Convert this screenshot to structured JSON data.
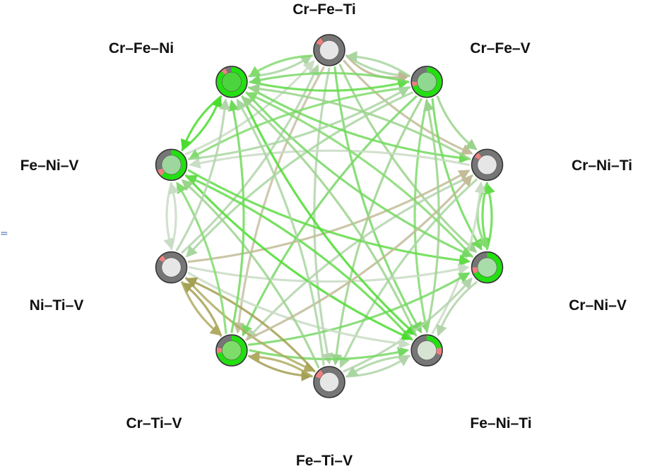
{
  "nodes": [
    {
      "id": "cr-fe-ti",
      "label": "Cr–Fe–Ti",
      "green_fraction": 0.0,
      "red_fraction": 0.07,
      "inner_color": "#e6e6e6"
    },
    {
      "id": "cr-fe-v",
      "label": "Cr–Fe–V",
      "green_fraction": 0.7,
      "red_fraction": 0.05,
      "inner_color": "#8fd88f"
    },
    {
      "id": "cr-ni-ti",
      "label": "Cr–Ni–Ti",
      "green_fraction": 0.0,
      "red_fraction": 0.06,
      "inner_color": "#e6e6e6"
    },
    {
      "id": "cr-ni-v",
      "label": "Cr–Ni–V",
      "green_fraction": 0.68,
      "red_fraction": 0.07,
      "inner_color": "#a8dca8"
    },
    {
      "id": "fe-ni-ti",
      "label": "Fe–Ni–Ti",
      "green_fraction": 0.22,
      "red_fraction": 0.08,
      "inner_color": "#d6e2d2"
    },
    {
      "id": "fe-ti-v",
      "label": "Fe–Ti–V",
      "green_fraction": 0.0,
      "red_fraction": 0.09,
      "inner_color": "#e6e6e6"
    },
    {
      "id": "cr-ti-v",
      "label": "Cr–Ti–V",
      "green_fraction": 0.72,
      "red_fraction": 0.06,
      "inner_color": "#7ddc6a"
    },
    {
      "id": "ni-ti-v",
      "label": "Ni–Ti–V",
      "green_fraction": 0.0,
      "red_fraction": 0.06,
      "inner_color": "#e6e6e6"
    },
    {
      "id": "fe-ni-v",
      "label": "Fe–Ni–V",
      "green_fraction": 0.62,
      "red_fraction": 0.07,
      "inner_color": "#9ed79e"
    },
    {
      "id": "cr-fe-ni",
      "label": "Cr–Fe–Ni",
      "green_fraction": 0.88,
      "red_fraction": 0.05,
      "inner_color": "#4cd43c"
    }
  ],
  "edges": [
    {
      "from": "cr-fe-ti",
      "to": "cr-fe-v",
      "color": "#a8d6a0"
    },
    {
      "from": "cr-fe-ti",
      "to": "cr-fe-v",
      "color": "#bfb792"
    },
    {
      "from": "cr-fe-v",
      "to": "cr-fe-ti",
      "color": "#a8d6a0"
    },
    {
      "from": "cr-fe-ni",
      "to": "cr-fe-ti",
      "color": "#a8d6a0"
    },
    {
      "from": "cr-fe-ti",
      "to": "cr-fe-ni",
      "color": "#82db6e"
    },
    {
      "from": "cr-fe-ti",
      "to": "cr-ni-ti",
      "color": "#c2bc98"
    },
    {
      "from": "cr-fe-ti",
      "to": "cr-ni-v",
      "color": "#9bd38c"
    },
    {
      "from": "cr-fe-ti",
      "to": "fe-ni-ti",
      "color": "#76d864"
    },
    {
      "from": "cr-fe-ti",
      "to": "fe-ti-v",
      "color": "#b3d4ab"
    },
    {
      "from": "cr-fe-ti",
      "to": "cr-ti-v",
      "color": "#c7c0a2"
    },
    {
      "from": "ni-ti-v",
      "to": "cr-fe-ti",
      "color": "#b3d4ab"
    },
    {
      "from": "fe-ni-v",
      "to": "cr-fe-ti",
      "color": "#c9dcc4"
    },
    {
      "from": "cr-fe-ni",
      "to": "cr-fe-v",
      "color": "#62dc48"
    },
    {
      "from": "cr-fe-v",
      "to": "cr-fe-ni",
      "color": "#7ad869"
    },
    {
      "from": "cr-fe-v",
      "to": "cr-ni-ti",
      "color": "#9bd38c"
    },
    {
      "from": "cr-fe-v",
      "to": "cr-ni-v",
      "color": "#6fda5a"
    },
    {
      "from": "cr-fe-v",
      "to": "fe-ni-ti",
      "color": "#82db6e"
    },
    {
      "from": "cr-fe-v",
      "to": "fe-ti-v",
      "color": "#9bd38c"
    },
    {
      "from": "cr-fe-v",
      "to": "cr-ti-v",
      "color": "#76d864"
    },
    {
      "from": "cr-fe-v",
      "to": "ni-ti-v",
      "color": "#a8d6a0"
    },
    {
      "from": "cr-fe-v",
      "to": "fe-ni-v",
      "color": "#82db6e"
    },
    {
      "from": "cr-fe-ni",
      "to": "cr-ni-ti",
      "color": "#6fda5a"
    },
    {
      "from": "cr-ni-ti",
      "to": "cr-ni-v",
      "color": "#62dc48"
    },
    {
      "from": "cr-ni-v",
      "to": "cr-ni-ti",
      "color": "#62dc48"
    },
    {
      "from": "cr-ni-ti",
      "to": "cr-ni-v",
      "color": "#82db6e"
    },
    {
      "from": "cr-ni-ti",
      "to": "fe-ni-v",
      "color": "#c9dcc4"
    },
    {
      "from": "cr-ni-ti",
      "to": "cr-ti-v",
      "color": "#b3d4ab"
    },
    {
      "from": "cr-ni-ti",
      "to": "fe-ti-v",
      "color": "#a8d6a0"
    },
    {
      "from": "ni-ti-v",
      "to": "cr-ni-ti",
      "color": "#c2bc98"
    },
    {
      "from": "fe-ni-ti",
      "to": "cr-ni-ti",
      "color": "#c9dcc4"
    },
    {
      "from": "cr-fe-ni",
      "to": "cr-ni-v",
      "color": "#76d864"
    },
    {
      "from": "fe-ni-v",
      "to": "cr-ni-v",
      "color": "#62dc48"
    },
    {
      "from": "ni-ti-v",
      "to": "cr-ni-v",
      "color": "#c9dcc4"
    },
    {
      "from": "cr-ti-v",
      "to": "cr-ni-v",
      "color": "#76d864"
    },
    {
      "from": "cr-ni-v",
      "to": "cr-fe-ni",
      "color": "#82db6e"
    },
    {
      "from": "cr-ni-v",
      "to": "fe-ni-ti",
      "color": "#b3d4ab"
    },
    {
      "from": "fe-ti-v",
      "to": "cr-ni-v",
      "color": "#b3d4ab"
    },
    {
      "from": "cr-fe-ni",
      "to": "fe-ni-ti",
      "color": "#4cdc2f"
    },
    {
      "from": "fe-ni-v",
      "to": "fe-ni-ti",
      "color": "#4cdc2f"
    },
    {
      "from": "fe-ni-ti",
      "to": "fe-ni-v",
      "color": "#62dc48"
    },
    {
      "from": "cr-ti-v",
      "to": "fe-ni-ti",
      "color": "#76d864"
    },
    {
      "from": "fe-ti-v",
      "to": "fe-ni-ti",
      "color": "#b3d4ab"
    },
    {
      "from": "fe-ni-ti",
      "to": "fe-ti-v",
      "color": "#a8d6a0"
    },
    {
      "from": "ni-ti-v",
      "to": "fe-ni-ti",
      "color": "#c9dcc4"
    },
    {
      "from": "cr-ti-v",
      "to": "fe-ti-v",
      "color": "#a4a054"
    },
    {
      "from": "fe-ti-v",
      "to": "cr-ti-v",
      "color": "#b0ab63"
    },
    {
      "from": "ni-ti-v",
      "to": "fe-ti-v",
      "color": "#b0ab63"
    },
    {
      "from": "fe-ti-v",
      "to": "ni-ti-v",
      "color": "#a4a054"
    },
    {
      "from": "cr-ti-v",
      "to": "ni-ti-v",
      "color": "#a4a054"
    },
    {
      "from": "ni-ti-v",
      "to": "cr-ti-v",
      "color": "#b0ab63"
    },
    {
      "from": "fe-ti-v",
      "to": "fe-ni-v",
      "color": "#9bd38c"
    },
    {
      "from": "cr-ti-v",
      "to": "fe-ni-v",
      "color": "#82db6e"
    },
    {
      "from": "cr-ti-v",
      "to": "cr-fe-ni",
      "color": "#6fda5a"
    },
    {
      "from": "cr-ti-v",
      "to": "cr-ni-ti",
      "color": "#c2bc98"
    },
    {
      "from": "ni-ti-v",
      "to": "fe-ni-v",
      "color": "#c9dcc4"
    },
    {
      "from": "fe-ni-v",
      "to": "ni-ti-v",
      "color": "#c9dcc4"
    },
    {
      "from": "fe-ni-v",
      "to": "cr-fe-ni",
      "color": "#4cdc2f"
    },
    {
      "from": "cr-fe-ni",
      "to": "fe-ni-v",
      "color": "#4cdc2f"
    },
    {
      "from": "fe-ni-ti",
      "to": "cr-fe-ni",
      "color": "#9bd38c"
    },
    {
      "from": "fe-ti-v",
      "to": "cr-fe-ni",
      "color": "#a8d6a0"
    },
    {
      "from": "ni-ti-v",
      "to": "cr-fe-ni",
      "color": "#b3d4ab"
    },
    {
      "from": "fe-ni-ti",
      "to": "cr-fe-v",
      "color": "#9bd38c"
    },
    {
      "from": "fe-ni-v",
      "to": "cr-fe-v",
      "color": "#a8d6a0"
    },
    {
      "from": "cr-ni-ti",
      "to": "cr-fe-ni",
      "color": "#9bd38c"
    }
  ]
}
